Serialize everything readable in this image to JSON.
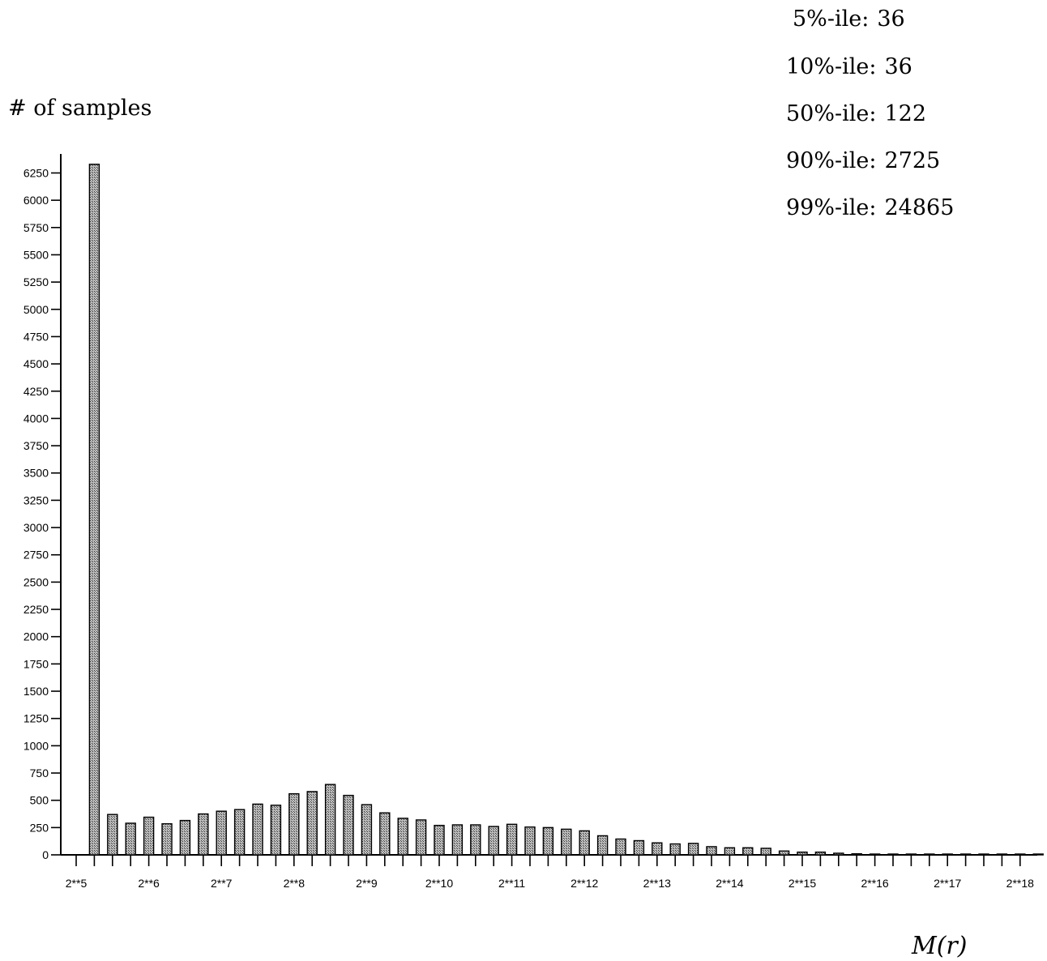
{
  "chart_data": {
    "type": "bar",
    "ylabel": "# of samples",
    "xlabel": "M(r)",
    "ylim": [
      0,
      6350
    ],
    "y_ticks": [
      0,
      250,
      500,
      750,
      1000,
      1250,
      1500,
      1750,
      2000,
      2250,
      2500,
      2750,
      3000,
      3250,
      3500,
      3750,
      4000,
      4250,
      4500,
      4750,
      5000,
      5250,
      5500,
      5750,
      6000,
      6250
    ],
    "x_tick_labels": [
      "2**5",
      "2**6",
      "2**7",
      "2**8",
      "2**9",
      "2**10",
      "2**11",
      "2**12",
      "2**13",
      "2**14",
      "2**15",
      "2**16",
      "2**17",
      "2**18"
    ],
    "bins_per_octave": 4,
    "x_first_exponent": 5,
    "values": [
      6330,
      370,
      290,
      345,
      285,
      315,
      375,
      400,
      415,
      465,
      455,
      560,
      580,
      645,
      545,
      460,
      385,
      335,
      320,
      270,
      275,
      275,
      260,
      280,
      255,
      250,
      235,
      220,
      175,
      145,
      130,
      110,
      100,
      105,
      75,
      65,
      65,
      60,
      35,
      25,
      25,
      15,
      10,
      5,
      5,
      3,
      2,
      2,
      1,
      1,
      1,
      1,
      1
    ],
    "grid": false,
    "legend": "none",
    "bar_color": "#9a9a9a",
    "bar_edge_color": "#000000",
    "annotations": [
      {
        "label": "5%-ile:",
        "value": "36"
      },
      {
        "label": "10%-ile:",
        "value": "36"
      },
      {
        "label": "50%-ile:",
        "value": "122"
      },
      {
        "label": "90%-ile:",
        "value": "2725"
      },
      {
        "label": "99%-ile:",
        "value": "24865"
      }
    ]
  }
}
